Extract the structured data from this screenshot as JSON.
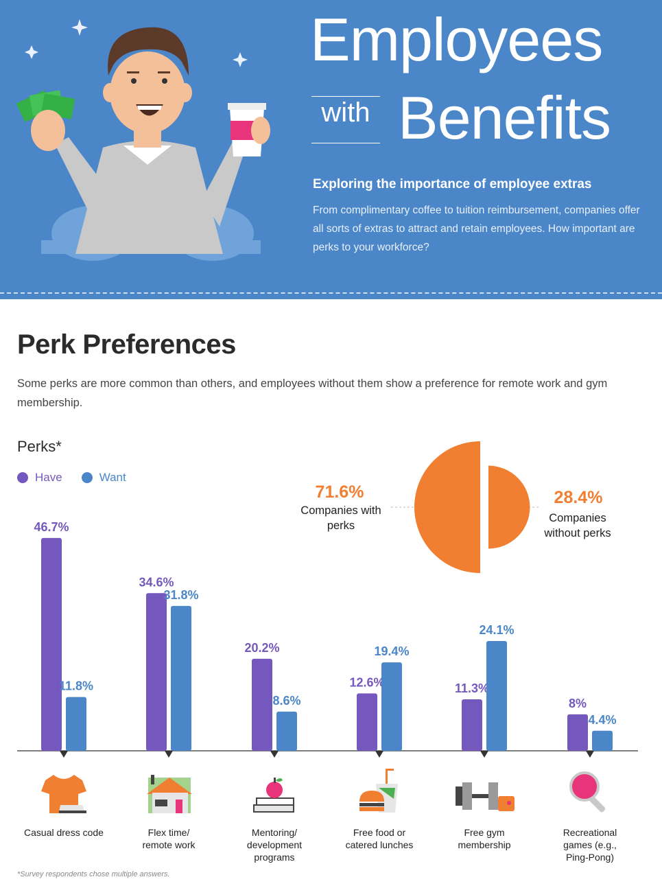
{
  "header": {
    "title_line1": "Employees",
    "title_with": "with",
    "title_line2": "Benefits",
    "subtitle": "Exploring the importance of employee extras",
    "description": "From complimentary coffee to tuition reimbursement, companies offer all sorts of extras to attract and retain employees. How important are perks to your workforce?"
  },
  "section": {
    "title": "Perk Preferences",
    "description": "Some perks are more common than others, and employees without them show a preference for remote work and gym membership."
  },
  "colors": {
    "hero_bg": "#4a86c8",
    "have": "#7458bd",
    "want": "#4a86c8",
    "pie": "#f07f32"
  },
  "icons": [
    "t-shirt-icon",
    "house-icon",
    "books-apple-icon",
    "burger-drink-icon",
    "dumbbell-icon",
    "ping-pong-paddle-icon"
  ],
  "pie": {
    "with_perks_pct": "71.6%",
    "with_perks_label": "Companies with perks",
    "without_perks_pct": "28.4%",
    "without_perks_label": "Companies without perks"
  },
  "chart_data": [
    {
      "type": "bar",
      "title": "Perks*",
      "categories": [
        "Casual dress code",
        "Flex time/ remote work",
        "Mentoring/ development programs",
        "Free food or catered lunches",
        "Free gym membership",
        "Recreational games (e.g., Ping-Pong)"
      ],
      "series": [
        {
          "name": "Have",
          "values": [
            46.7,
            34.6,
            20.2,
            12.6,
            11.3,
            8
          ],
          "labels": [
            "46.7%",
            "34.6%",
            "20.2%",
            "12.6%",
            "11.3%",
            "8%"
          ]
        },
        {
          "name": "Want",
          "values": [
            11.8,
            31.8,
            8.6,
            19.4,
            24.1,
            4.4
          ],
          "labels": [
            "11.8%",
            "31.8%",
            "8.6%",
            "19.4%",
            "24.1%",
            "4.4%"
          ]
        }
      ],
      "ylim": [
        0,
        50
      ],
      "legend": "top-left"
    },
    {
      "type": "pie",
      "categories": [
        "Companies with perks",
        "Companies without perks"
      ],
      "values": [
        71.6,
        28.4
      ]
    }
  ],
  "footnote": "*Survey respondents chose multiple answers."
}
